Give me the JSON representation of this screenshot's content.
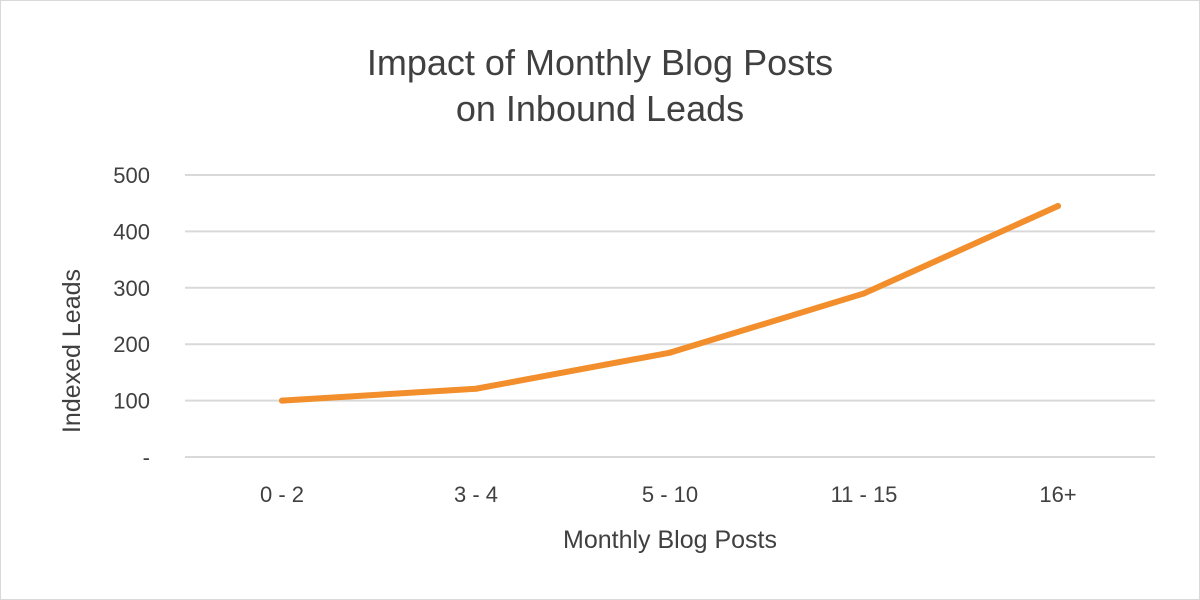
{
  "chart_data": {
    "type": "line",
    "title": [
      "Impact of Monthly Blog Posts",
      "on Inbound Leads"
    ],
    "xlabel": "Monthly Blog Posts",
    "ylabel": "Indexed Leads",
    "categories": [
      "0 - 2",
      "3 - 4",
      "5 - 10",
      "11 - 15",
      "16+"
    ],
    "series": [
      {
        "values": [
          100,
          121,
          185,
          290,
          445
        ],
        "color": "#f28e2b"
      }
    ],
    "ylim": [
      0,
      500
    ],
    "yticks": [
      0,
      100,
      200,
      300,
      400,
      500
    ],
    "ytick_labels": [
      "-",
      "100",
      "200",
      "300",
      "400",
      "500"
    ],
    "grid": true,
    "legend": "none",
    "gridline_color": "#d9d9d9"
  }
}
